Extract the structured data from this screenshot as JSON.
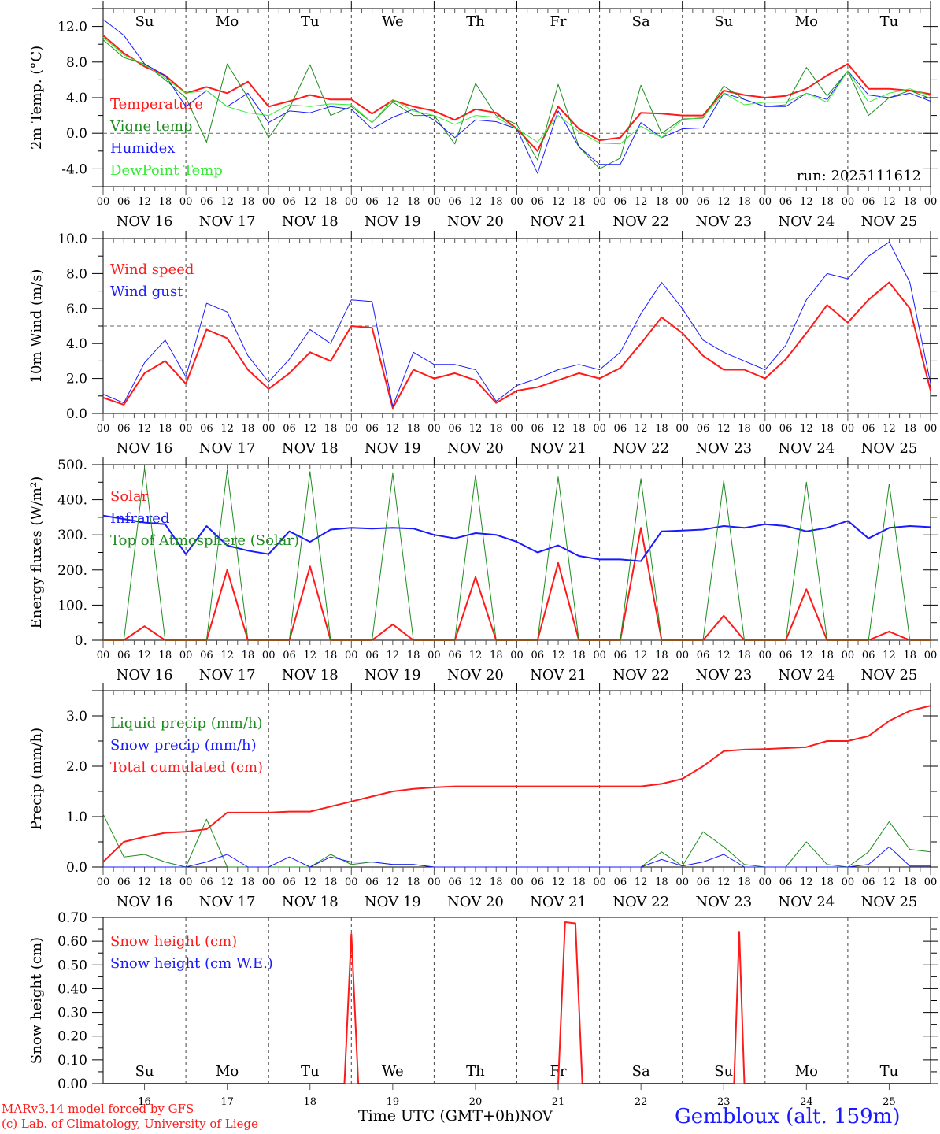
{
  "colors": {
    "red": "#ff1a1a",
    "green": "#1e8c1e",
    "blue": "#1a1aff",
    "lightgreen": "#33ee33",
    "black": "#000000",
    "weekend": "#ff2020"
  },
  "days": [
    {
      "label": "Su",
      "weekend": true,
      "date": "NOV 16",
      "num": "16"
    },
    {
      "label": "Mo",
      "weekend": false,
      "date": "NOV 17",
      "num": "17"
    },
    {
      "label": "Tu",
      "weekend": false,
      "date": "NOV 18",
      "num": "18"
    },
    {
      "label": "We",
      "weekend": false,
      "date": "NOV 19",
      "num": "19"
    },
    {
      "label": "Th",
      "weekend": false,
      "date": "NOV 20",
      "num": "20"
    },
    {
      "label": "Fr",
      "weekend": false,
      "date": "NOV 21",
      "num": "21"
    },
    {
      "label": "Sa",
      "weekend": true,
      "date": "NOV 22",
      "num": "22"
    },
    {
      "label": "Su",
      "weekend": true,
      "date": "NOV 23",
      "num": "23"
    },
    {
      "label": "Mo",
      "weekend": false,
      "date": "NOV 24",
      "num": "24"
    },
    {
      "label": "Tu",
      "weekend": false,
      "date": "NOV 25",
      "num": "25"
    }
  ],
  "hour_labels": [
    "00",
    "06",
    "12",
    "18"
  ],
  "footer": {
    "model": "MARv3.14 model forced by GFS",
    "credit": "(c) Lab. of Climatology, University of Liege",
    "xlabel": "Time UTC (GMT+0h)",
    "month": "NOV",
    "station": "Gembloux (alt. 159m)"
  },
  "chart_data": [
    {
      "type": "line",
      "id": "temp",
      "ylabel": "2m Temp. (°C)",
      "ylim": [
        -6,
        14
      ],
      "yticks": [
        -4,
        0,
        4,
        8,
        12
      ],
      "ytick_labels": [
        "-4.0",
        "0.0",
        "4.0",
        "8.0",
        "12.0"
      ],
      "ref_line": 0,
      "annotation": "run: 2025111612",
      "x_unit": "hours since 2025-11-16 00Z, 6-hourly",
      "series": [
        {
          "name": "Temperature",
          "color": "red",
          "width": 2,
          "values": [
            11.0,
            9.0,
            7.5,
            6.5,
            4.5,
            5.2,
            4.5,
            5.8,
            3.0,
            3.6,
            4.3,
            3.8,
            3.8,
            2.2,
            3.7,
            3.0,
            2.5,
            1.5,
            2.7,
            2.3,
            0.5,
            -2.0,
            3.0,
            0.5,
            -0.8,
            -0.5,
            2.3,
            2.2,
            2.0,
            2.0,
            4.8,
            4.3,
            4.0,
            4.2,
            5.0,
            6.5,
            7.8,
            5.0,
            5.0,
            4.8,
            4.4
          ]
        },
        {
          "name": "Vigne temp",
          "color": "green",
          "width": 1,
          "values": [
            10.5,
            8.5,
            7.8,
            6.0,
            4.0,
            -1.0,
            7.8,
            4.0,
            -0.5,
            2.8,
            7.7,
            2.0,
            3.0,
            1.2,
            3.5,
            2.0,
            2.0,
            -1.2,
            5.6,
            2.0,
            1.0,
            -3.0,
            5.5,
            -1.5,
            -4.0,
            -2.8,
            5.4,
            0.0,
            1.6,
            1.7,
            5.3,
            3.8,
            3.0,
            3.2,
            7.4,
            4.2,
            7.0,
            2.0,
            4.0,
            4.8,
            3.9
          ]
        },
        {
          "name": "Humidex",
          "color": "blue",
          "width": 1,
          "values": [
            12.8,
            11.0,
            7.8,
            6.5,
            3.0,
            4.8,
            3.0,
            4.5,
            1.2,
            2.5,
            2.3,
            3.0,
            2.7,
            0.5,
            1.8,
            2.7,
            1.5,
            -0.5,
            1.5,
            1.3,
            0.5,
            -4.5,
            2.5,
            -1.5,
            -3.5,
            -3.5,
            1.2,
            -0.5,
            0.5,
            0.6,
            4.5,
            3.8,
            3.0,
            3.0,
            4.5,
            3.8,
            7.0,
            4.3,
            4.0,
            4.5,
            3.6
          ]
        },
        {
          "name": "DewPoint Temp",
          "color": "lightgreen",
          "width": 1,
          "values": [
            10.8,
            8.8,
            7.7,
            6.2,
            4.5,
            4.8,
            3.0,
            2.3,
            2.0,
            3.2,
            3.0,
            3.3,
            3.2,
            1.2,
            3.8,
            2.5,
            2.0,
            1.0,
            2.0,
            1.8,
            0.5,
            -1.0,
            2.0,
            0.2,
            -1.1,
            -1.2,
            0.8,
            -0.5,
            1.5,
            1.8,
            4.5,
            3.2,
            3.5,
            3.5,
            4.5,
            3.5,
            7.0,
            3.5,
            4.5,
            5.0,
            4.2
          ]
        }
      ]
    },
    {
      "type": "line",
      "id": "wind",
      "ylabel": "10m Wind (m/s)",
      "ylim": [
        0,
        10
      ],
      "yticks": [
        0,
        2,
        4,
        6,
        8,
        10
      ],
      "ytick_labels": [
        "0.0",
        "2.0",
        "4.0",
        "6.0",
        "8.0",
        "10.0"
      ],
      "ref_line": 5,
      "series": [
        {
          "name": "Wind speed",
          "color": "red",
          "width": 2,
          "values": [
            0.9,
            0.5,
            2.3,
            3.0,
            1.7,
            4.8,
            4.3,
            2.5,
            1.4,
            2.3,
            3.5,
            3.0,
            5.0,
            4.9,
            0.3,
            2.5,
            2.0,
            2.3,
            1.9,
            0.6,
            1.3,
            1.5,
            1.9,
            2.3,
            2.0,
            2.6,
            4.0,
            5.5,
            4.6,
            3.3,
            2.5,
            2.5,
            2.0,
            3.1,
            4.6,
            6.2,
            5.2,
            6.5,
            7.5,
            6.0,
            1.3
          ]
        },
        {
          "name": "Wind gust",
          "color": "blue",
          "width": 1,
          "values": [
            1.1,
            0.6,
            2.9,
            4.2,
            2.1,
            6.3,
            5.8,
            3.3,
            1.8,
            3.1,
            4.8,
            4.0,
            6.5,
            6.4,
            0.4,
            3.5,
            2.8,
            2.8,
            2.5,
            0.7,
            1.6,
            2.0,
            2.5,
            2.8,
            2.5,
            3.5,
            5.7,
            7.5,
            6.0,
            4.2,
            3.5,
            3.0,
            2.5,
            3.9,
            6.5,
            8.0,
            7.7,
            9.0,
            9.8,
            7.5,
            1.7
          ]
        }
      ]
    },
    {
      "type": "line",
      "id": "flux",
      "ylabel": "Energy fluxes (W/m²)",
      "ylim": [
        0,
        500
      ],
      "yticks": [
        0,
        100,
        200,
        300,
        400,
        500
      ],
      "ytick_labels": [
        "0.",
        "100.",
        "200.",
        "300.",
        "400.",
        "500."
      ],
      "series": [
        {
          "name": "Solar",
          "color": "red",
          "width": 2,
          "values": [
            0,
            0,
            40,
            0,
            0,
            0,
            200,
            0,
            0,
            0,
            210,
            0,
            0,
            0,
            45,
            0,
            0,
            0,
            180,
            0,
            0,
            0,
            220,
            0,
            0,
            0,
            320,
            0,
            0,
            0,
            70,
            0,
            0,
            0,
            145,
            0,
            0,
            0,
            25,
            0,
            0
          ]
        },
        {
          "name": "Infrared",
          "color": "blue",
          "width": 2,
          "values": [
            355,
            345,
            335,
            330,
            245,
            325,
            270,
            255,
            245,
            310,
            280,
            315,
            320,
            318,
            320,
            318,
            300,
            290,
            305,
            300,
            280,
            250,
            270,
            240,
            230,
            230,
            225,
            310,
            312,
            315,
            325,
            320,
            330,
            325,
            310,
            320,
            340,
            290,
            320,
            325,
            322
          ]
        },
        {
          "name": "Top of Atmosphere (Solar)",
          "color": "green",
          "width": 1,
          "values": [
            0,
            0,
            490,
            0,
            0,
            0,
            485,
            0,
            0,
            0,
            480,
            0,
            0,
            0,
            475,
            0,
            0,
            0,
            470,
            0,
            0,
            0,
            465,
            0,
            0,
            0,
            460,
            0,
            0,
            0,
            455,
            0,
            0,
            0,
            450,
            0,
            0,
            0,
            445,
            0,
            0
          ]
        }
      ]
    },
    {
      "type": "line",
      "id": "precip",
      "ylabel": "Precip (mm/h)",
      "ylim": [
        0,
        3.5
      ],
      "yticks": [
        0,
        1,
        2,
        3
      ],
      "ytick_labels": [
        "0.0",
        "1.0",
        "2.0",
        "3.0"
      ],
      "series": [
        {
          "name": "Liquid precip (mm/h)",
          "color": "green",
          "width": 1,
          "values": [
            1.05,
            0.2,
            0.25,
            0.1,
            0.0,
            0.95,
            0.0,
            0.0,
            0.0,
            0.0,
            0.0,
            0.25,
            0.05,
            0.1,
            0.05,
            0.05,
            0.0,
            0.0,
            0.0,
            0.0,
            0.0,
            0.0,
            0.0,
            0.0,
            0.0,
            0.0,
            0.0,
            0.3,
            0.02,
            0.7,
            0.4,
            0.05,
            0.0,
            0.0,
            0.5,
            0.05,
            0.0,
            0.3,
            0.9,
            0.35,
            0.3
          ]
        },
        {
          "name": "Snow precip (mm/h)",
          "color": "blue",
          "width": 1,
          "values": [
            0,
            0,
            0,
            0,
            0,
            0.1,
            0.25,
            0,
            0,
            0.2,
            0,
            0.2,
            0.1,
            0.1,
            0.05,
            0.05,
            0,
            0,
            0,
            0,
            0,
            0,
            0,
            0,
            0,
            0,
            0,
            0.15,
            0.02,
            0.1,
            0.25,
            0,
            0,
            0,
            0,
            0,
            0,
            0.05,
            0.4,
            0.02,
            0.02
          ]
        },
        {
          "name": "Total cumulated (cm)",
          "color": "red",
          "width": 2,
          "values": [
            0.1,
            0.5,
            0.6,
            0.68,
            0.7,
            0.75,
            1.08,
            1.08,
            1.08,
            1.1,
            1.1,
            1.2,
            1.3,
            1.4,
            1.5,
            1.55,
            1.58,
            1.6,
            1.6,
            1.6,
            1.6,
            1.6,
            1.6,
            1.6,
            1.6,
            1.6,
            1.6,
            1.65,
            1.75,
            2.0,
            2.3,
            2.33,
            2.34,
            2.36,
            2.38,
            2.5,
            2.5,
            2.6,
            2.9,
            3.1,
            3.2
          ]
        }
      ]
    },
    {
      "type": "line",
      "id": "snow",
      "ylabel": "Snow height (cm)",
      "ylim": [
        0,
        0.7
      ],
      "yticks": [
        0,
        0.1,
        0.2,
        0.3,
        0.4,
        0.5,
        0.6,
        0.7
      ],
      "ytick_labels": [
        "0.00",
        "0.10",
        "0.20",
        "0.30",
        "0.40",
        "0.50",
        "0.60",
        "0.70"
      ],
      "x_unit": "hours since 2025-11-16 00Z",
      "series": [
        {
          "name": "Snow height (cm)",
          "color": "red",
          "width": 2,
          "points": [
            [
              0,
              0
            ],
            [
              70,
              0
            ],
            [
              72,
              0.63
            ],
            [
              74,
              0
            ],
            [
              132,
              0
            ],
            [
              134,
              0.68
            ],
            [
              137,
              0.675
            ],
            [
              139,
              0
            ],
            [
              183,
              0
            ],
            [
              184.5,
              0.64
            ],
            [
              186,
              0
            ],
            [
              240,
              0
            ]
          ]
        },
        {
          "name": "Snow height (cm W.E.)",
          "color": "blue",
          "width": 1,
          "points": [
            [
              0,
              0
            ],
            [
              240,
              0
            ]
          ]
        }
      ]
    }
  ]
}
